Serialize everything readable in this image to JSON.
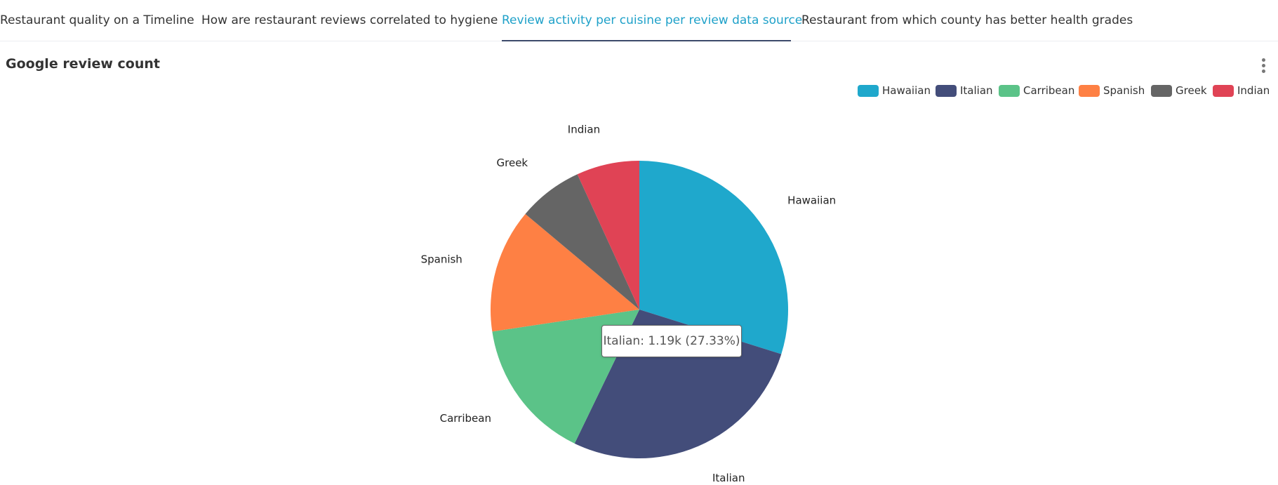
{
  "tabs": [
    {
      "label": "Restaurant quality on a Timeline",
      "active": false
    },
    {
      "label": "How are restaurant reviews correlated to hygiene",
      "active": false
    },
    {
      "label": "Review activity per cuisine per review data source",
      "active": true
    },
    {
      "label": "Restaurant from which county has better health grades",
      "active": false
    }
  ],
  "chart": {
    "title": "Google review count",
    "menu_icon": "more-vertical-icon",
    "tooltip": "Italian: 1.19k (27.33%)"
  },
  "chart_data": {
    "type": "pie",
    "title": "Google review count",
    "legend_position": "top-right",
    "series": [
      {
        "name": "Hawaiian",
        "value_pct": 29.84,
        "color": "#1fa8cc"
      },
      {
        "name": "Italian",
        "value_pct": 27.33,
        "value_label": "1.19k",
        "color": "#434d7a"
      },
      {
        "name": "Carribean",
        "value_pct": 15.47,
        "color": "#5bc388"
      },
      {
        "name": "Spanish",
        "value_pct": 13.46,
        "color": "#fe8044"
      },
      {
        "name": "Greek",
        "value_pct": 7.06,
        "color": "#656565"
      },
      {
        "name": "Indian",
        "value_pct": 6.84,
        "color": "#e04355"
      }
    ]
  }
}
